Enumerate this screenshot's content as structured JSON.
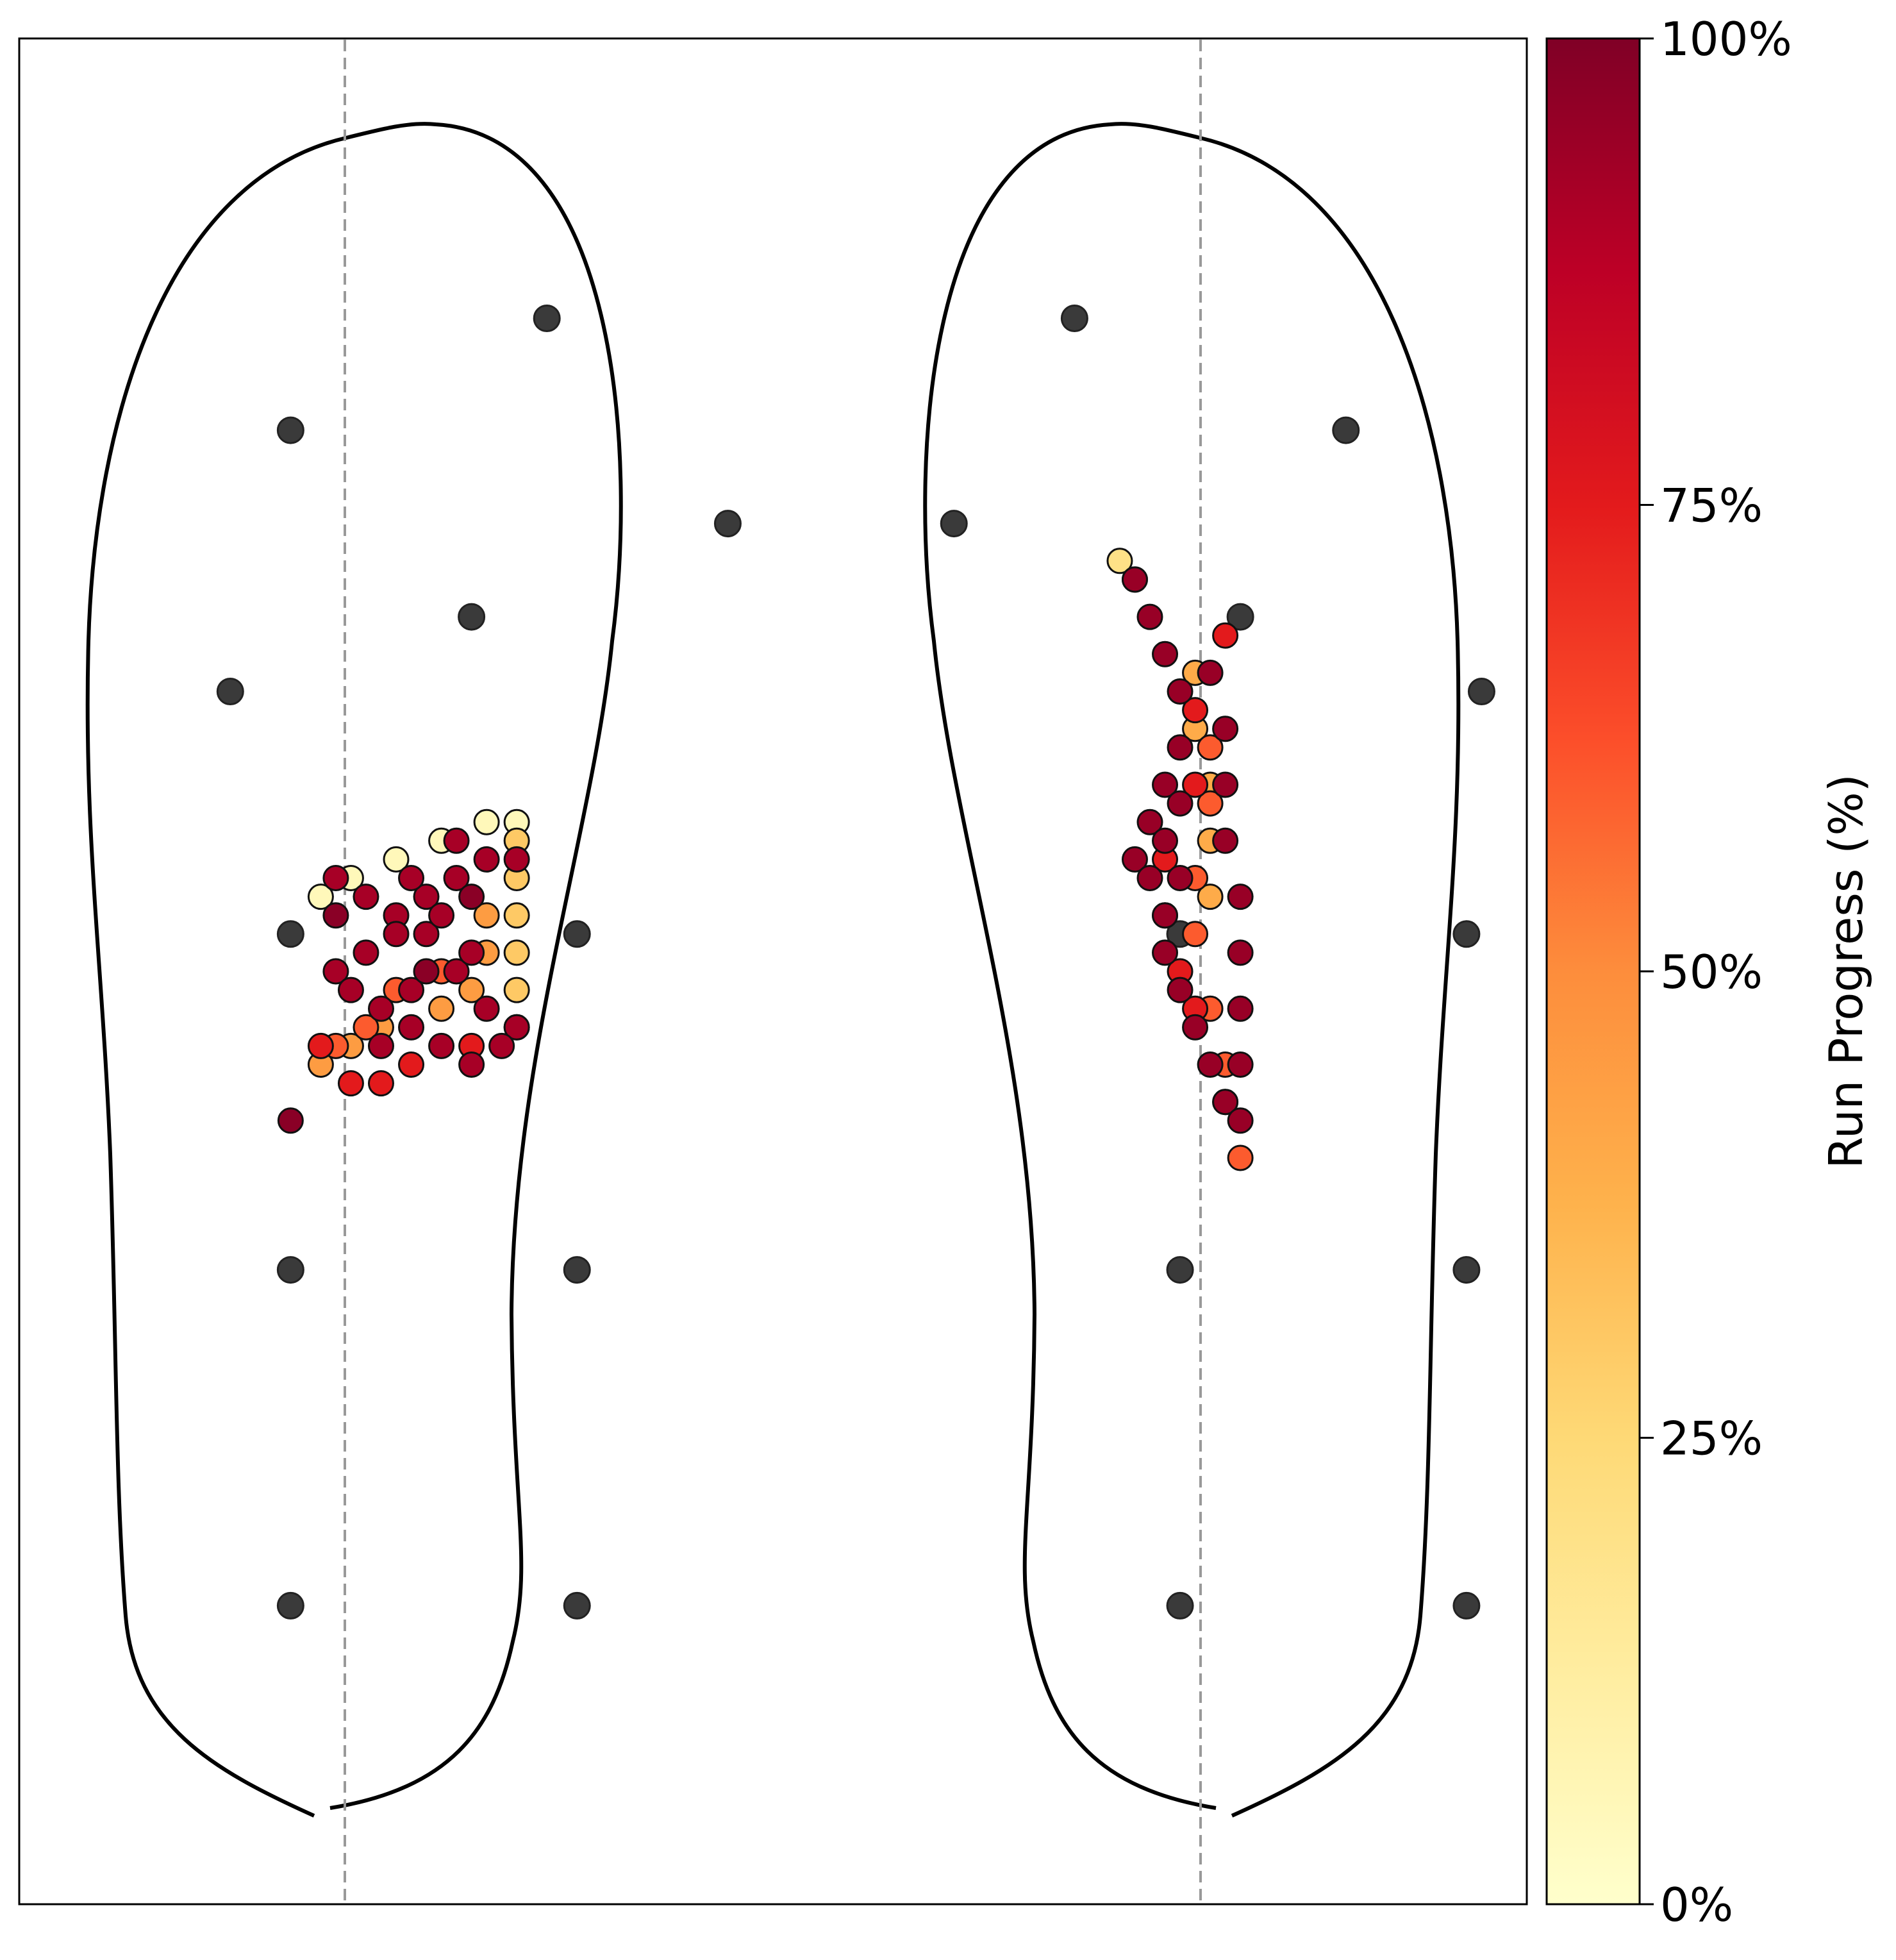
{
  "chart_data": {
    "type": "scatter",
    "description_of_panels": [
      "left-foot",
      "right-foot"
    ],
    "colorbar": {
      "label": "Run Progress (%)",
      "range": [
        0,
        100
      ],
      "ticks": [
        0,
        25,
        50,
        75,
        100
      ],
      "tick_labels": [
        "0%",
        "25%",
        "50%",
        "75%",
        "100%"
      ],
      "colormap": [
        "#ffffcc",
        "#ffeda0",
        "#fed976",
        "#feb24c",
        "#fd8d3c",
        "#fc4e2a",
        "#e31a1c",
        "#bd0026",
        "#800026"
      ]
    },
    "sensor_color": "#3a3a3a",
    "sensors": {
      "left": [
        [
          0.35,
          0.85
        ],
        [
          0.18,
          0.79
        ],
        [
          0.47,
          0.74
        ],
        [
          0.3,
          0.69
        ],
        [
          0.14,
          0.65
        ],
        [
          0.18,
          0.52
        ],
        [
          0.37,
          0.52
        ],
        [
          0.18,
          0.34
        ],
        [
          0.37,
          0.34
        ],
        [
          0.18,
          0.16
        ],
        [
          0.37,
          0.16
        ]
      ],
      "right": [
        [
          0.7,
          0.85
        ],
        [
          0.88,
          0.79
        ],
        [
          0.62,
          0.74
        ],
        [
          0.81,
          0.69
        ],
        [
          0.97,
          0.65
        ],
        [
          0.77,
          0.52
        ],
        [
          0.96,
          0.52
        ],
        [
          0.77,
          0.34
        ],
        [
          0.96,
          0.34
        ],
        [
          0.77,
          0.16
        ],
        [
          0.96,
          0.16
        ]
      ]
    },
    "cop_trace": {
      "left": {
        "series": [
          {
            "progress": 5,
            "points": [
              [
                0.2,
                0.54
              ],
              [
                0.22,
                0.55
              ],
              [
                0.25,
                0.56
              ],
              [
                0.28,
                0.57
              ],
              [
                0.31,
                0.58
              ],
              [
                0.33,
                0.58
              ]
            ]
          },
          {
            "progress": 30,
            "points": [
              [
                0.33,
                0.57
              ],
              [
                0.33,
                0.55
              ],
              [
                0.33,
                0.53
              ],
              [
                0.33,
                0.51
              ],
              [
                0.33,
                0.49
              ]
            ]
          },
          {
            "progress": 45,
            "points": [
              [
                0.31,
                0.53
              ],
              [
                0.31,
                0.51
              ],
              [
                0.3,
                0.49
              ],
              [
                0.28,
                0.48
              ],
              [
                0.24,
                0.47
              ],
              [
                0.22,
                0.46
              ],
              [
                0.2,
                0.45
              ]
            ]
          },
          {
            "progress": 60,
            "points": [
              [
                0.28,
                0.5
              ],
              [
                0.25,
                0.49
              ],
              [
                0.23,
                0.47
              ],
              [
                0.21,
                0.46
              ]
            ]
          },
          {
            "progress": 75,
            "points": [
              [
                0.2,
                0.46
              ],
              [
                0.22,
                0.44
              ],
              [
                0.24,
                0.44
              ],
              [
                0.26,
                0.45
              ],
              [
                0.3,
                0.46
              ],
              [
                0.33,
                0.47
              ]
            ]
          },
          {
            "progress": 92,
            "points": [
              [
                0.21,
                0.55
              ],
              [
                0.23,
                0.54
              ],
              [
                0.25,
                0.53
              ],
              [
                0.27,
                0.52
              ],
              [
                0.29,
                0.5
              ],
              [
                0.31,
                0.48
              ],
              [
                0.33,
                0.47
              ],
              [
                0.31,
                0.56
              ],
              [
                0.29,
                0.55
              ],
              [
                0.27,
                0.54
              ],
              [
                0.25,
                0.52
              ],
              [
                0.23,
                0.51
              ],
              [
                0.21,
                0.5
              ],
              [
                0.22,
                0.49
              ],
              [
                0.24,
                0.48
              ],
              [
                0.26,
                0.47
              ],
              [
                0.28,
                0.46
              ],
              [
                0.3,
                0.45
              ],
              [
                0.32,
                0.46
              ],
              [
                0.33,
                0.56
              ],
              [
                0.29,
                0.57
              ],
              [
                0.26,
                0.55
              ],
              [
                0.28,
                0.53
              ],
              [
                0.3,
                0.51
              ],
              [
                0.26,
                0.49
              ],
              [
                0.24,
                0.46
              ]
            ]
          },
          {
            "progress": 98,
            "points": [
              [
                0.18,
                0.42
              ],
              [
                0.21,
                0.53
              ],
              [
                0.27,
                0.5
              ],
              [
                0.3,
                0.54
              ]
            ]
          }
        ]
      },
      "right": {
        "series": [
          {
            "progress": 20,
            "points": [
              [
                0.73,
                0.72
              ],
              [
                0.74,
                0.71
              ]
            ]
          },
          {
            "progress": 40,
            "points": [
              [
                0.78,
                0.66
              ],
              [
                0.78,
                0.63
              ],
              [
                0.79,
                0.6
              ],
              [
                0.79,
                0.57
              ],
              [
                0.79,
                0.54
              ]
            ]
          },
          {
            "progress": 60,
            "points": [
              [
                0.79,
                0.62
              ],
              [
                0.79,
                0.59
              ],
              [
                0.78,
                0.55
              ],
              [
                0.78,
                0.52
              ],
              [
                0.79,
                0.48
              ],
              [
                0.8,
                0.45
              ],
              [
                0.81,
                0.4
              ]
            ]
          },
          {
            "progress": 75,
            "points": [
              [
                0.78,
                0.64
              ],
              [
                0.78,
                0.6
              ],
              [
                0.76,
                0.56
              ],
              [
                0.76,
                0.53
              ],
              [
                0.77,
                0.5
              ],
              [
                0.78,
                0.48
              ],
              [
                0.8,
                0.43
              ],
              [
                0.8,
                0.68
              ]
            ]
          },
          {
            "progress": 95,
            "points": [
              [
                0.74,
                0.71
              ],
              [
                0.75,
                0.69
              ],
              [
                0.76,
                0.67
              ],
              [
                0.77,
                0.65
              ],
              [
                0.77,
                0.62
              ],
              [
                0.76,
                0.6
              ],
              [
                0.75,
                0.58
              ],
              [
                0.74,
                0.56
              ],
              [
                0.75,
                0.55
              ],
              [
                0.76,
                0.57
              ],
              [
                0.77,
                0.59
              ],
              [
                0.77,
                0.55
              ],
              [
                0.76,
                0.53
              ],
              [
                0.76,
                0.51
              ],
              [
                0.77,
                0.49
              ],
              [
                0.78,
                0.47
              ],
              [
                0.79,
                0.45
              ],
              [
                0.8,
                0.43
              ],
              [
                0.81,
                0.42
              ],
              [
                0.81,
                0.45
              ],
              [
                0.81,
                0.48
              ],
              [
                0.81,
                0.51
              ],
              [
                0.81,
                0.54
              ],
              [
                0.8,
                0.57
              ],
              [
                0.8,
                0.6
              ],
              [
                0.8,
                0.63
              ],
              [
                0.79,
                0.66
              ]
            ]
          }
        ]
      }
    },
    "grid": false
  }
}
